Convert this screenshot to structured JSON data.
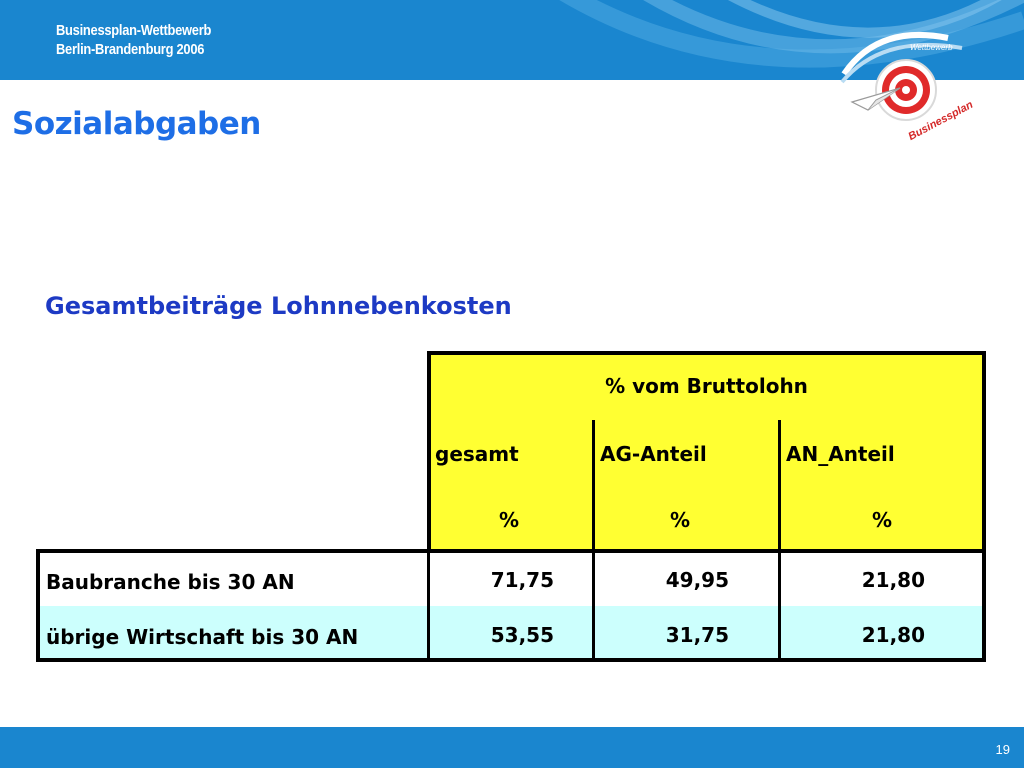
{
  "header": {
    "brand_line1": "Businessplan-Wettbewerb",
    "brand_line2": "Berlin-Brandenburg 2006",
    "logo_text_top": "Wettbewerb",
    "logo_text_bottom": "Businessplan"
  },
  "slide": {
    "title": "Sozialabgaben",
    "subtitle": "Gesamtbeiträge Lohnnebenkosten"
  },
  "table": {
    "group_header": "% vom Bruttolohn",
    "columns": [
      {
        "label": "gesamt",
        "unit": "%"
      },
      {
        "label": "AG-Anteil",
        "unit": "%"
      },
      {
        "label": "AN_Anteil",
        "unit": "%"
      }
    ],
    "rows": [
      {
        "label": "Baubranche bis 30 AN",
        "values": [
          "71,75",
          "49,95",
          "21,80"
        ]
      },
      {
        "label": "übrige Wirtschaft bis 30 AN",
        "values": [
          "53,55",
          "31,75",
          "21,80"
        ]
      }
    ]
  },
  "footer": {
    "page_number": "19"
  },
  "colors": {
    "band_blue": "#1a86cf",
    "title_blue": "#1e6ee6",
    "subtitle_blue": "#1d3ac4",
    "header_yellow": "#ffff32",
    "row_alt_cyan": "#ccfffd"
  }
}
